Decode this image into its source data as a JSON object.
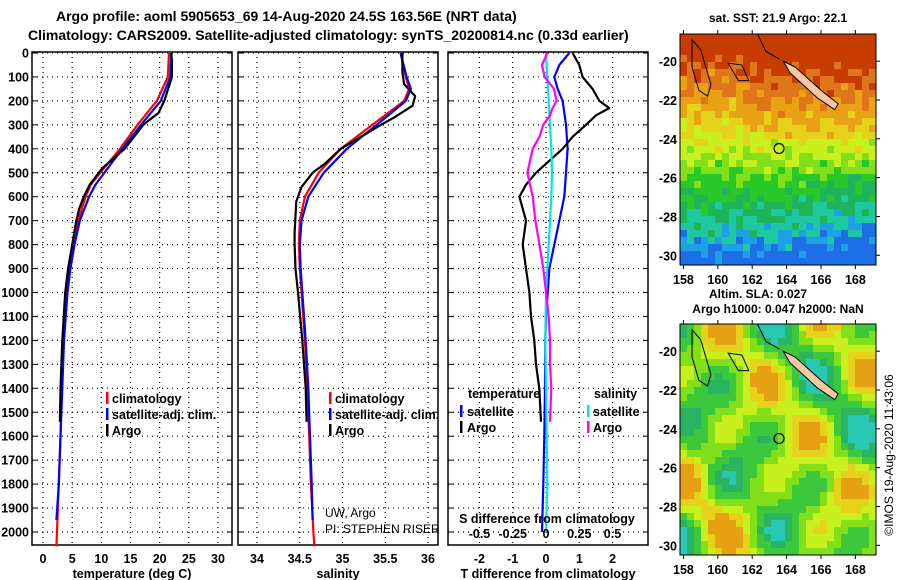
{
  "header": {
    "line1": "Argo profile: aoml 5905653_69 14-Aug-2020 24.5S 163.56E (NRT data)",
    "line2": "Climatology: CARS2009. Satellite-adjusted climatology: synTS_20200814.nc (0.33d earlier)"
  },
  "colors": {
    "climatology": "#ff0000",
    "satellite": "#0000ff",
    "argo": "#000000",
    "salinity_satellite": "#00e5ee",
    "salinity_argo": "#ff00ff"
  },
  "chart_data": [
    {
      "type": "line",
      "title": "",
      "xlabel": "temperature (deg C)",
      "ylabel": "",
      "xlim": [
        -1.5,
        32
      ],
      "ylim": [
        2060,
        0
      ],
      "xticks": [
        0,
        5,
        10,
        15,
        20,
        25,
        30
      ],
      "xtick_labels": [
        "0",
        "5",
        "10",
        "15",
        "20",
        "25",
        "30"
      ],
      "yticks": [
        0,
        100,
        200,
        300,
        400,
        500,
        600,
        700,
        800,
        900,
        1000,
        1100,
        1200,
        1300,
        1400,
        1500,
        1600,
        1700,
        1800,
        1900,
        2000
      ],
      "ytick_labels": [
        "0",
        "100",
        "200",
        "300",
        "400",
        "500",
        "600",
        "700",
        "800",
        "900",
        "1000",
        "1100",
        "1200",
        "1300",
        "1400",
        "1500",
        "1600",
        "1700",
        "1800",
        "1900",
        "2000"
      ],
      "grid": true,
      "legend": {
        "placement": "bottom-right",
        "entries": [
          "climatology",
          "satellite-adj. clim.",
          "Argo"
        ]
      },
      "series": [
        {
          "name": "climatology",
          "color_key": "climatology",
          "depth": [
            0,
            100,
            200,
            300,
            400,
            500,
            550,
            600,
            700,
            800,
            900,
            1000,
            1200,
            1400,
            1600,
            1800,
            2000,
            2060
          ],
          "values": [
            21.6,
            21.4,
            19.5,
            16.2,
            13.2,
            9.8,
            8.2,
            7.3,
            6.0,
            5.2,
            4.5,
            4.0,
            3.5,
            3.2,
            3.0,
            2.7,
            2.4,
            2.3
          ]
        },
        {
          "name": "satellite-adj. clim.",
          "color_key": "satellite",
          "depth": [
            0,
            100,
            200,
            300,
            400,
            500,
            550,
            600,
            700,
            800,
            900,
            1000,
            1200,
            1400,
            1600,
            1800,
            1950
          ],
          "values": [
            22.0,
            21.8,
            20.2,
            16.8,
            13.6,
            10.5,
            9.0,
            7.9,
            6.3,
            5.4,
            4.7,
            4.2,
            3.6,
            3.3,
            3.0,
            2.7,
            2.3
          ]
        },
        {
          "name": "Argo",
          "color_key": "argo",
          "depth": [
            0,
            30,
            100,
            200,
            250,
            300,
            400,
            480,
            550,
            600,
            650,
            700,
            800,
            900,
            1000,
            1200,
            1400,
            1540
          ],
          "values": [
            22.0,
            22.1,
            22.1,
            20.8,
            19.8,
            17.2,
            14.0,
            10.2,
            8.0,
            7.0,
            6.2,
            5.7,
            5.0,
            4.3,
            3.8,
            3.3,
            3.0,
            2.9
          ]
        }
      ]
    },
    {
      "type": "line",
      "title": "",
      "xlabel": "salinity",
      "xlim": [
        33.8,
        36.1
      ],
      "ylim": [
        2060,
        0
      ],
      "xticks": [
        34,
        34.5,
        35,
        35.5,
        36
      ],
      "xtick_labels": [
        "34",
        "34.5",
        "35",
        "35.5",
        "36"
      ],
      "grid": true,
      "legend": {
        "placement": "bottom-right",
        "entries": [
          "climatology",
          "satellite-adj. clim.",
          "Argo"
        ]
      },
      "annotation": [
        "UW, Argo",
        "PI: STEPHEN RISER"
      ],
      "series": [
        {
          "name": "climatology",
          "color_key": "climatology",
          "depth": [
            0,
            100,
            150,
            200,
            300,
            400,
            500,
            600,
            700,
            800,
            900,
            1000,
            1200,
            1400,
            1600,
            1800,
            2000,
            2060
          ],
          "values": [
            35.68,
            35.74,
            35.78,
            35.72,
            35.35,
            34.98,
            34.72,
            34.56,
            34.5,
            34.49,
            34.5,
            34.52,
            34.56,
            34.59,
            34.61,
            34.63,
            34.66,
            34.67
          ]
        },
        {
          "name": "satellite-adj. clim.",
          "color_key": "satellite",
          "depth": [
            0,
            100,
            150,
            200,
            300,
            400,
            500,
            600,
            700,
            800,
            900,
            1000,
            1200,
            1400,
            1600,
            1800,
            1950
          ],
          "values": [
            35.68,
            35.75,
            35.8,
            35.74,
            35.4,
            35.05,
            34.78,
            34.6,
            34.52,
            34.5,
            34.51,
            34.53,
            34.57,
            34.6,
            34.62,
            34.64,
            34.65
          ]
        },
        {
          "name": "Argo",
          "color_key": "argo",
          "depth": [
            0,
            80,
            130,
            180,
            220,
            270,
            300,
            400,
            460,
            500,
            560,
            620,
            680,
            750,
            800,
            900,
            1000,
            1200,
            1400,
            1540
          ],
          "values": [
            35.7,
            35.7,
            35.72,
            35.85,
            35.82,
            35.6,
            35.45,
            34.98,
            34.8,
            34.65,
            34.52,
            34.46,
            34.45,
            34.44,
            34.44,
            34.45,
            34.48,
            34.53,
            34.57,
            34.58
          ]
        }
      ]
    },
    {
      "type": "line",
      "title": "",
      "xlabel": "T difference from climatology",
      "secondary_xlabel": "S difference from climatology",
      "xlim": [
        -3,
        3
      ],
      "ylim": [
        2060,
        0
      ],
      "xticks": [
        -2,
        -1,
        0,
        1,
        2
      ],
      "xtick_labels": [
        "-2",
        "-1",
        "0",
        "1",
        "2"
      ],
      "secondary_xticks": [
        -0.5,
        -0.25,
        0,
        0.25,
        0.5
      ],
      "secondary_xtick_labels": [
        "-0.5",
        "-0.25",
        "0",
        "0.25",
        "0.5"
      ],
      "grid": true,
      "legend": {
        "placement": "bottom",
        "groups": [
          {
            "title": "temperature",
            "entries": [
              "satellite",
              "Argo"
            ]
          },
          {
            "title": "salinity",
            "entries": [
              "satellite",
              "Argo"
            ]
          }
        ]
      },
      "series": [
        {
          "name": "temperature satellite",
          "color_key": "satellite",
          "units": "T",
          "depth": [
            0,
            50,
            100,
            150,
            200,
            300,
            400,
            500,
            600,
            700,
            800,
            900,
            1000,
            1100,
            1200,
            1400,
            1600,
            1800,
            2000
          ],
          "values": [
            0.7,
            0.4,
            0.25,
            0.35,
            0.5,
            0.6,
            0.65,
            0.6,
            0.55,
            0.4,
            0.25,
            0.1,
            0.05,
            0.0,
            -0.02,
            -0.03,
            -0.05,
            -0.08,
            -0.12
          ]
        },
        {
          "name": "temperature Argo",
          "color_key": "argo",
          "units": "T",
          "depth": [
            0,
            50,
            100,
            150,
            200,
            230,
            260,
            300,
            350,
            400,
            450,
            500,
            550,
            600,
            650,
            700,
            800,
            900,
            1000,
            1100,
            1200,
            1300,
            1400,
            1540
          ],
          "values": [
            0.8,
            1.0,
            1.1,
            1.4,
            1.6,
            1.9,
            1.5,
            1.2,
            0.8,
            0.5,
            0.1,
            -0.3,
            -0.6,
            -0.8,
            -0.7,
            -0.6,
            -0.7,
            -0.6,
            -0.5,
            -0.45,
            -0.35,
            -0.3,
            -0.2,
            -0.15
          ]
        },
        {
          "name": "salinity satellite",
          "color_key": "salinity_satellite",
          "units": "S",
          "depth": [
            0,
            100,
            200,
            300,
            400,
            500,
            600,
            700,
            800,
            900,
            1000,
            1200,
            1400,
            1600,
            1800,
            2000
          ],
          "values": [
            0.0,
            0.01,
            0.02,
            0.03,
            0.04,
            0.045,
            0.04,
            0.03,
            0.02,
            0.01,
            0.0,
            -0.005,
            0.0,
            0.005,
            0.01,
            0.0
          ]
        },
        {
          "name": "salinity Argo",
          "color_key": "salinity_argo",
          "units": "S",
          "depth": [
            0,
            50,
            100,
            150,
            200,
            230,
            260,
            300,
            350,
            400,
            450,
            500,
            550,
            600,
            700,
            800,
            900,
            1000,
            1100,
            1200,
            1300,
            1400,
            1540
          ],
          "values": [
            0.01,
            -0.03,
            -0.01,
            0.06,
            0.08,
            0.05,
            0.03,
            -0.02,
            -0.05,
            -0.1,
            -0.12,
            -0.14,
            -0.12,
            -0.1,
            -0.08,
            -0.05,
            -0.02,
            0.0,
            0.02,
            0.03,
            0.03,
            0.04,
            0.03
          ]
        }
      ]
    },
    {
      "type": "heatmap",
      "title": "sat. SST: 21.9 Argo: 22.1",
      "xlim": [
        157.8,
        169.2
      ],
      "ylim": [
        -30.5,
        -18.6
      ],
      "xticks": [
        158,
        160,
        162,
        164,
        166,
        168
      ],
      "xtick_labels": [
        "158",
        "160",
        "162",
        "164",
        "166",
        "168"
      ],
      "yticks": [
        -20,
        -22,
        -24,
        -26,
        -28,
        -30
      ],
      "ytick_labels": [
        "-20",
        "-22",
        "-24",
        "-26",
        "-28",
        "-30"
      ],
      "marker": {
        "lon": 163.56,
        "lat": -24.5
      },
      "values_label": "sat. SST: 21.9, Argo: 22.1"
    },
    {
      "type": "heatmap",
      "title": "Altim. SLA: 0.027",
      "subtitle": "Argo h1000: 0.047 h2000: NaN",
      "xlim": [
        157.8,
        169.2
      ],
      "ylim": [
        -30.5,
        -18.6
      ],
      "xticks": [
        158,
        160,
        162,
        164,
        166,
        168
      ],
      "xtick_labels": [
        "158",
        "160",
        "162",
        "164",
        "166",
        "168"
      ],
      "yticks": [
        -20,
        -22,
        -24,
        -26,
        -28,
        -30
      ],
      "ytick_labels": [
        "-20",
        "-22",
        "-24",
        "-26",
        "-28",
        "-30"
      ],
      "marker": {
        "lon": 163.56,
        "lat": -24.5
      }
    }
  ],
  "footer": {
    "watermark": "©IMOS 19-Aug-2020 11:43:06"
  }
}
